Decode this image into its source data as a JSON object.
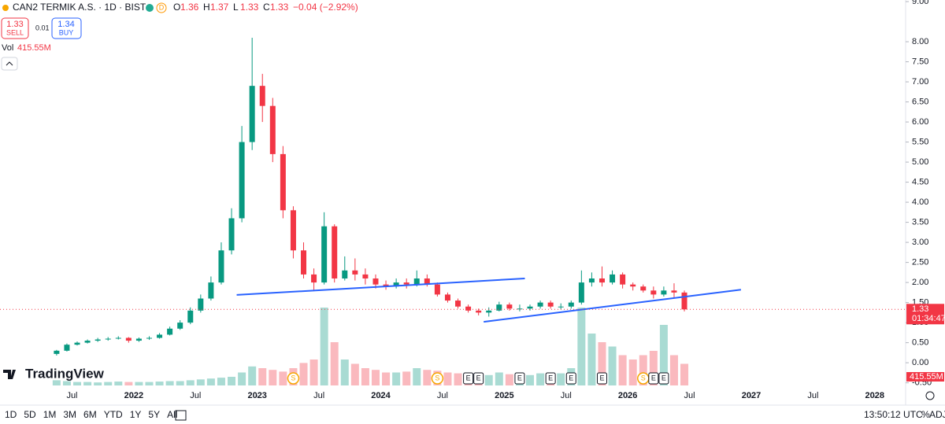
{
  "header": {
    "symbol": "CAN2 TERMIK A.S. · 1D · BIST",
    "badge": "D",
    "ohlc": [
      {
        "key": "O",
        "val": "1.36"
      },
      {
        "key": "H",
        "val": "1.37"
      },
      {
        "key": "L",
        "val": "1.33"
      },
      {
        "key": "C",
        "val": "1.33"
      }
    ],
    "change": "−0.04 (−2.92%)",
    "sell_price": "1.33",
    "sell": "SELL",
    "spread": "0.01",
    "buy_price": "1.34",
    "buy": "BUY",
    "vol_label": "Vol",
    "vol_value": "415.55M"
  },
  "toolbar": {
    "ranges": [
      "1D",
      "5D",
      "1M",
      "3M",
      "6M",
      "YTD",
      "1Y",
      "5Y",
      "All"
    ],
    "time": "13:50:12 UTC",
    "percent": "%",
    "adj": "ADJ"
  },
  "logo": "TradingView",
  "chart_data": {
    "type": "candlestick",
    "xlim": [
      "2020-12",
      "2028-04"
    ],
    "xticks": [
      {
        "value": "2021-07",
        "label": "Jul"
      },
      {
        "value": "2022-01",
        "label": "2022"
      },
      {
        "value": "2022-07",
        "label": "Jul"
      },
      {
        "value": "2023-01",
        "label": "2023"
      },
      {
        "value": "2023-07",
        "label": "Jul"
      },
      {
        "value": "2024-01",
        "label": "2024"
      },
      {
        "value": "2024-07",
        "label": "Jul"
      },
      {
        "value": "2025-01",
        "label": "2025"
      },
      {
        "value": "2025-07",
        "label": "Jul"
      },
      {
        "value": "2026-01",
        "label": "2026"
      },
      {
        "value": "2026-07",
        "label": "Jul"
      },
      {
        "value": "2027-01",
        "label": "2027"
      },
      {
        "value": "2027-07",
        "label": "Jul"
      },
      {
        "value": "2028-01",
        "label": "2028"
      }
    ],
    "ylim": [
      -0.86,
      9.04
    ],
    "yticks": [
      {
        "value": -0.5,
        "label": "-0.50"
      },
      {
        "value": 0,
        "label": "0.00"
      },
      {
        "value": 0.5,
        "label": "0.50"
      },
      {
        "value": 1,
        "label": "1.00"
      },
      {
        "value": 1.5,
        "label": "1.50"
      },
      {
        "value": 2,
        "label": "2.00"
      },
      {
        "value": 2.5,
        "label": "2.50"
      },
      {
        "value": 3,
        "label": "3.00"
      },
      {
        "value": 3.5,
        "label": "3.50"
      },
      {
        "value": 4,
        "label": "4.00"
      },
      {
        "value": 4.5,
        "label": "4.50"
      },
      {
        "value": 5,
        "label": "5.00"
      },
      {
        "value": 5.5,
        "label": "5.50"
      },
      {
        "value": 6,
        "label": "6.00"
      },
      {
        "value": 6.5,
        "label": "6.50"
      },
      {
        "value": 7,
        "label": "7.00"
      },
      {
        "value": 7.5,
        "label": "7.50"
      },
      {
        "value": 8,
        "label": "8.00"
      },
      {
        "value": 9,
        "label": "9.00"
      }
    ],
    "up_color": "#089981",
    "down_color": "#f23645",
    "dates": [
      "2021-05",
      "2021-06",
      "2021-07",
      "2021-08",
      "2021-09",
      "2021-10",
      "2021-11",
      "2021-12",
      "2022-01",
      "2022-02",
      "2022-03",
      "2022-04",
      "2022-05",
      "2022-06",
      "2022-07",
      "2022-08",
      "2022-09",
      "2022-10",
      "2022-11",
      "2022-12",
      "2023-01",
      "2023-02",
      "2023-03",
      "2023-04",
      "2023-05",
      "2023-06",
      "2023-07",
      "2023-08",
      "2023-09",
      "2023-10",
      "2023-11",
      "2023-12",
      "2024-01",
      "2024-02",
      "2024-03",
      "2024-04",
      "2024-05",
      "2024-06",
      "2024-07",
      "2024-08",
      "2024-09",
      "2024-10",
      "2024-11",
      "2024-12",
      "2025-01",
      "2025-02",
      "2025-03",
      "2025-04",
      "2025-05",
      "2025-06",
      "2025-07",
      "2025-08",
      "2025-09",
      "2025-10",
      "2025-11",
      "2025-12",
      "2026-01",
      "2026-02",
      "2026-03",
      "2026-04",
      "2026-05",
      "2026-06"
    ],
    "open": [
      0.22,
      0.3,
      0.45,
      0.5,
      0.55,
      0.58,
      0.6,
      0.62,
      0.55,
      0.6,
      0.62,
      0.7,
      0.85,
      1.0,
      1.3,
      1.6,
      2.0,
      2.8,
      3.6,
      5.5,
      6.9,
      6.4,
      5.2,
      3.8,
      2.8,
      2.2,
      2.0,
      3.4,
      2.1,
      2.3,
      2.2,
      2.1,
      1.95,
      1.9,
      2.0,
      1.95,
      2.1,
      1.95,
      1.7,
      1.55,
      1.4,
      1.3,
      1.25,
      1.3,
      1.45,
      1.35,
      1.35,
      1.4,
      1.5,
      1.4,
      1.4,
      1.5,
      2.0,
      2.1,
      2.0,
      2.2,
      1.95,
      1.9,
      1.8,
      1.7,
      1.8,
      1.75
    ],
    "high": [
      0.32,
      0.48,
      0.53,
      0.58,
      0.62,
      0.64,
      0.66,
      0.64,
      0.63,
      0.66,
      0.74,
      0.9,
      1.06,
      1.38,
      1.7,
      2.15,
      3.0,
      3.85,
      5.9,
      8.1,
      7.2,
      6.6,
      5.4,
      3.9,
      3.0,
      2.35,
      3.75,
      3.45,
      2.65,
      2.6,
      2.35,
      2.2,
      2.05,
      2.1,
      2.1,
      2.3,
      2.2,
      2.0,
      1.75,
      1.6,
      1.45,
      1.35,
      1.38,
      1.52,
      1.5,
      1.45,
      1.45,
      1.55,
      1.55,
      1.48,
      1.55,
      2.3,
      2.25,
      2.4,
      2.3,
      2.25,
      2.0,
      1.95,
      1.9,
      1.9,
      1.98,
      1.8
    ],
    "low": [
      0.18,
      0.28,
      0.43,
      0.48,
      0.52,
      0.55,
      0.58,
      0.5,
      0.52,
      0.57,
      0.6,
      0.68,
      0.82,
      0.96,
      1.25,
      1.55,
      1.95,
      2.7,
      3.5,
      5.3,
      6.0,
      5.0,
      3.6,
      2.6,
      2.1,
      1.8,
      1.95,
      2.0,
      2.05,
      2.05,
      1.95,
      1.85,
      1.82,
      1.85,
      1.85,
      1.9,
      1.9,
      1.65,
      1.5,
      1.35,
      1.25,
      1.18,
      1.15,
      1.28,
      1.3,
      1.28,
      1.3,
      1.35,
      1.35,
      1.33,
      1.35,
      1.45,
      1.9,
      1.9,
      1.95,
      1.85,
      1.8,
      1.75,
      1.6,
      1.65,
      1.6,
      1.28
    ],
    "close": [
      0.3,
      0.45,
      0.5,
      0.55,
      0.58,
      0.6,
      0.62,
      0.55,
      0.6,
      0.62,
      0.7,
      0.85,
      1.0,
      1.3,
      1.6,
      2.0,
      2.8,
      3.6,
      5.5,
      6.9,
      6.4,
      5.2,
      3.8,
      2.8,
      2.2,
      2.0,
      3.4,
      2.1,
      2.3,
      2.2,
      2.1,
      1.95,
      1.9,
      2.0,
      1.95,
      2.1,
      1.95,
      1.7,
      1.55,
      1.4,
      1.3,
      1.25,
      1.3,
      1.45,
      1.35,
      1.35,
      1.4,
      1.5,
      1.4,
      1.4,
      1.5,
      2.0,
      2.1,
      2.0,
      2.2,
      1.95,
      1.9,
      1.8,
      1.7,
      1.8,
      1.75,
      1.33
    ],
    "volume": [
      60,
      50,
      40,
      40,
      35,
      40,
      45,
      40,
      40,
      40,
      45,
      50,
      50,
      60,
      70,
      80,
      90,
      100,
      150,
      220,
      200,
      180,
      160,
      200,
      260,
      300,
      900,
      500,
      300,
      250,
      200,
      180,
      150,
      150,
      160,
      200,
      180,
      170,
      150,
      140,
      120,
      110,
      120,
      150,
      130,
      120,
      120,
      140,
      130,
      140,
      200,
      900,
      600,
      500,
      450,
      350,
      300,
      350,
      400,
      700,
      350,
      250
    ],
    "volume_lim": [
      0,
      1000
    ],
    "last_price": 1.33,
    "last_price_label": "1.33",
    "countdown": "01:34:47",
    "trendlines": [
      {
        "x": [
          "2022-11",
          "2025-03"
        ],
        "y": [
          1.69,
          2.1
        ],
        "color": "#2962ff"
      },
      {
        "x": [
          "2024-11",
          "2026-12"
        ],
        "y": [
          1.02,
          1.82
        ],
        "color": "#2962ff"
      }
    ],
    "events": [
      {
        "date": "2023-04",
        "label": "S"
      },
      {
        "date": "2024-06",
        "label": "S"
      },
      {
        "date": "2026-02",
        "label": "S"
      },
      {
        "date": "2024-09",
        "label": "E"
      },
      {
        "date": "2024-10",
        "label": "E"
      },
      {
        "date": "2025-02",
        "label": "E"
      },
      {
        "date": "2025-05",
        "label": "E"
      },
      {
        "date": "2025-07",
        "label": "E"
      },
      {
        "date": "2025-10",
        "label": "E"
      },
      {
        "date": "2026-03",
        "label": "E"
      },
      {
        "date": "2026-04",
        "label": "E"
      }
    ]
  }
}
